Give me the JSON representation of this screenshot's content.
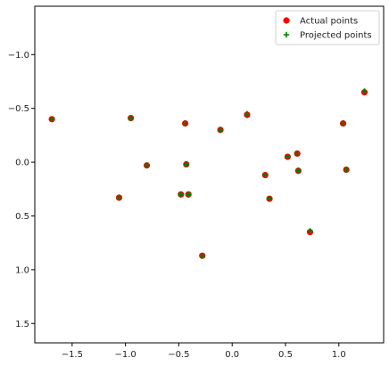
{
  "chart_data": {
    "type": "scatter",
    "title": "",
    "xlabel": "",
    "ylabel": "",
    "xlim": [
      -1.85,
      1.42
    ],
    "ylim": [
      1.68,
      -1.45
    ],
    "y_inverted": true,
    "grid": false,
    "legend_position": "top-right",
    "x_ticks": [
      -1.5,
      -1.0,
      -0.5,
      0.0,
      0.5,
      1.0
    ],
    "x_tick_labels": [
      "−1.5",
      "−1.0",
      "−0.5",
      "0.0",
      "0.5",
      "1.0"
    ],
    "y_ticks": [
      -1.0,
      -0.5,
      0.0,
      0.5,
      1.0,
      1.5
    ],
    "y_tick_labels": [
      "−1.0",
      "−0.5",
      "0.0",
      "0.5",
      "1.0",
      "1.5"
    ],
    "series": [
      {
        "name": "Actual points",
        "marker": "circle",
        "color": "#ff0000",
        "x": [
          -1.69,
          -0.95,
          -0.44,
          0.14,
          -0.11,
          1.24,
          1.04,
          -0.8,
          -0.43,
          0.52,
          0.61,
          0.62,
          1.07,
          0.31,
          -1.06,
          -0.48,
          -0.41,
          0.35,
          0.73,
          -0.28
        ],
        "y": [
          -0.4,
          -0.41,
          -0.36,
          -0.44,
          -0.3,
          -0.65,
          -0.36,
          0.03,
          0.02,
          -0.05,
          -0.08,
          0.08,
          0.07,
          0.12,
          0.33,
          0.3,
          0.3,
          0.34,
          0.65,
          0.87
        ]
      },
      {
        "name": "Projected points",
        "marker": "plus",
        "color": "#008000",
        "x": [
          -1.69,
          -0.95,
          -0.44,
          0.14,
          -0.11,
          1.24,
          1.04,
          -0.8,
          -0.43,
          0.52,
          0.61,
          0.62,
          1.07,
          0.31,
          -1.06,
          -0.48,
          -0.41,
          0.35,
          0.73,
          -0.28
        ],
        "y": [
          -0.4,
          -0.41,
          -0.36,
          -0.45,
          -0.3,
          -0.66,
          -0.36,
          0.03,
          0.02,
          -0.05,
          -0.08,
          0.08,
          0.07,
          0.12,
          0.33,
          0.3,
          0.3,
          0.34,
          0.64,
          0.87
        ]
      }
    ]
  }
}
